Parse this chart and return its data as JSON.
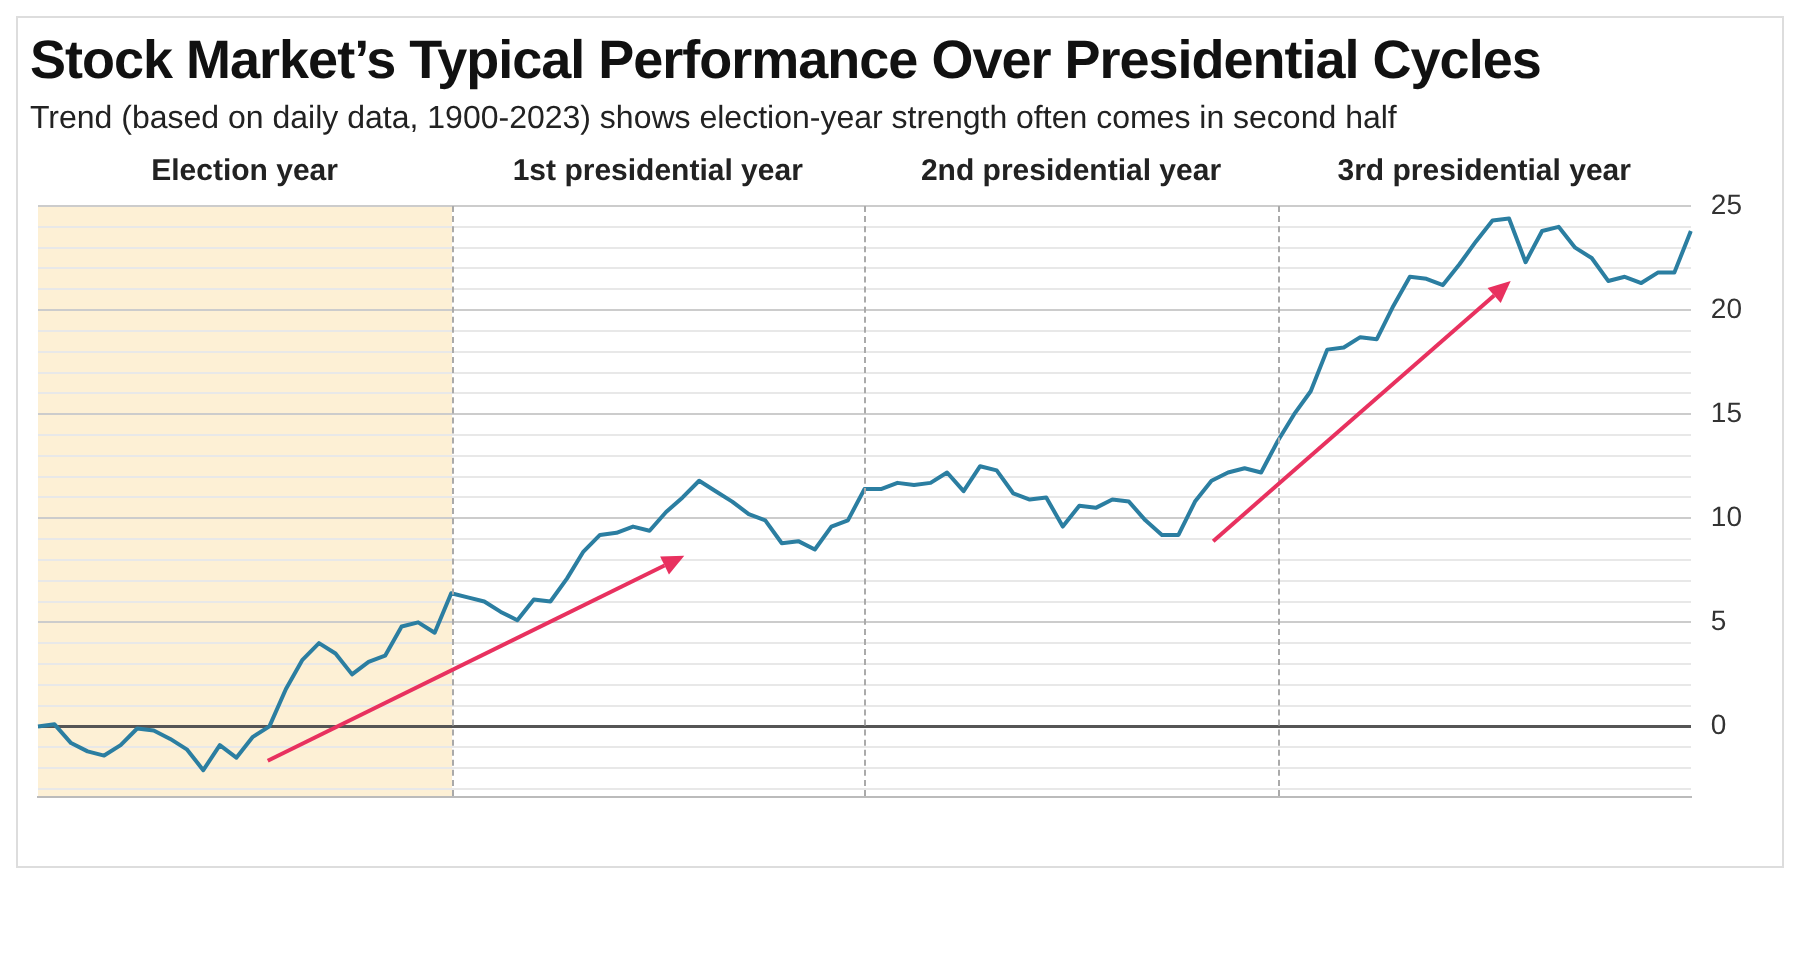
{
  "chart_data": {
    "type": "line",
    "title": "Stock Market’s Typical Performance Over Presidential Cycles",
    "subtitle": "Trend (based on daily data, 1900-2023) shows election-year strength often comes in second half",
    "annotations": [
      "Election year",
      "1st presidential year",
      "2nd presidential year",
      "3rd presidential year"
    ],
    "categories": [
      null,
      null,
      null,
      null,
      null,
      null,
      null,
      null,
      null,
      null,
      null,
      null,
      null,
      null,
      null,
      null,
      null,
      null,
      null,
      null,
      null,
      null,
      null,
      null,
      null,
      null,
      null,
      null,
      null,
      null,
      null,
      null,
      null,
      null,
      null,
      null,
      null,
      null,
      null,
      null,
      null,
      null,
      null,
      null,
      null,
      null,
      null,
      null,
      null,
      null,
      null,
      null,
      null,
      null,
      null,
      null,
      null,
      null,
      null,
      null,
      null,
      null,
      null,
      null,
      null,
      null,
      null,
      null,
      null,
      null,
      null,
      null,
      null,
      null,
      null,
      null,
      null,
      null,
      null,
      null,
      null,
      null,
      null,
      null,
      null,
      null,
      null,
      null,
      null,
      null,
      null,
      null,
      null,
      null,
      null,
      null,
      null,
      null,
      null,
      null,
      null
    ],
    "series": [
      {
        "color": "#2b7ea1",
        "values": [
          0,
          0.1,
          -0.8,
          -1.2,
          -1.4,
          -0.9,
          -0.1,
          -0.2,
          -0.6,
          -1.1,
          -2.1,
          -0.9,
          -1.5,
          -0.5,
          0,
          1.8,
          3.2,
          4.0,
          3.5,
          2.5,
          3.1,
          3.4,
          4.8,
          5.0,
          4.5,
          6.4,
          6.2,
          6.0,
          5.5,
          5.1,
          6.1,
          6.0,
          7.1,
          8.4,
          9.2,
          9.3,
          9.6,
          9.4,
          10.3,
          11.0,
          11.8,
          11.3,
          10.8,
          10.2,
          9.9,
          8.8,
          8.9,
          8.5,
          9.6,
          9.9,
          11.4,
          11.4,
          11.7,
          11.6,
          11.7,
          12.2,
          11.3,
          12.5,
          12.3,
          11.2,
          10.9,
          11.0,
          9.6,
          10.6,
          10.5,
          10.9,
          10.8,
          9.9,
          9.2,
          9.2,
          10.8,
          11.8,
          12.2,
          12.4,
          12.2,
          13.7,
          15.0,
          16.1,
          18.1,
          18.2,
          18.7,
          18.6,
          20.2,
          21.6,
          21.5,
          21.2,
          22.2,
          23.3,
          24.3,
          24.4,
          22.3,
          23.8,
          24.0,
          23.0,
          22.5,
          21.4,
          21.6,
          21.3,
          21.8,
          21.8,
          23.8
        ]
      }
    ],
    "ylim": [
      -3.4,
      25
    ],
    "yticks": [
      {
        "value": -3,
        "label": null
      },
      {
        "value": -2,
        "label": null
      },
      {
        "value": -1,
        "label": null
      },
      0,
      {
        "value": 1,
        "label": null
      },
      {
        "value": 2,
        "label": null
      },
      {
        "value": 3,
        "label": null
      },
      {
        "value": 4,
        "label": null
      },
      5,
      {
        "value": 6,
        "label": null
      },
      {
        "value": 7,
        "label": null
      },
      {
        "value": 8,
        "label": null
      },
      {
        "value": 9,
        "label": null
      },
      10,
      {
        "value": 11,
        "label": null
      },
      {
        "value": 12,
        "label": null
      },
      {
        "value": 13,
        "label": null
      },
      {
        "value": 14,
        "label": null
      },
      15,
      {
        "value": 16,
        "label": null
      },
      {
        "value": 17,
        "label": null
      },
      {
        "value": 18,
        "label": null
      },
      {
        "value": 19,
        "label": null
      },
      20,
      {
        "value": 21,
        "label": null
      },
      {
        "value": 22,
        "label": null
      },
      {
        "value": 23,
        "label": null
      },
      {
        "value": 24,
        "label": null
      },
      25
    ],
    "grid": true,
    "marker": "none",
    "line_style": "solid",
    "legend": false
  }
}
